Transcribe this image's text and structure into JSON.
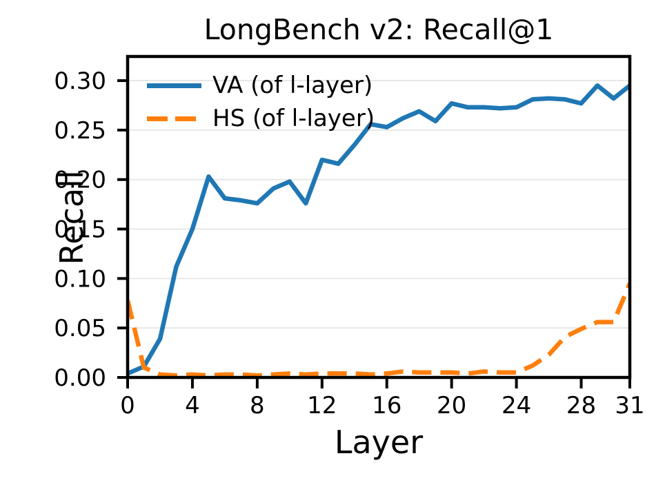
{
  "figure": {
    "background": "#ffffff"
  },
  "chart_data": {
    "type": "line",
    "title": "LongBench v2: Recall@1",
    "xlabel": "Layer",
    "ylabel": "Recall",
    "x": [
      0,
      1,
      2,
      3,
      4,
      5,
      6,
      7,
      8,
      9,
      10,
      11,
      12,
      13,
      14,
      15,
      16,
      17,
      18,
      19,
      20,
      21,
      22,
      23,
      24,
      25,
      26,
      27,
      28,
      29,
      30,
      31
    ],
    "series": [
      {
        "name": "VA (of l-layer)",
        "color": "#1f77b4",
        "line_style": "solid",
        "line_width": 6.5,
        "values": [
          0.004,
          0.011,
          0.039,
          0.112,
          0.15,
          0.203,
          0.181,
          0.179,
          0.176,
          0.191,
          0.198,
          0.176,
          0.22,
          0.216,
          0.235,
          0.256,
          0.253,
          0.262,
          0.269,
          0.259,
          0.277,
          0.273,
          0.273,
          0.272,
          0.273,
          0.281,
          0.282,
          0.281,
          0.277,
          0.295,
          0.282,
          0.295
        ]
      },
      {
        "name": "HS (of l-layer)",
        "color": "#ff7f0e",
        "line_style": "dashed",
        "line_width": 6.5,
        "values": [
          0.078,
          0.01,
          0.003,
          0.002,
          0.003,
          0.002,
          0.003,
          0.003,
          0.002,
          0.003,
          0.004,
          0.003,
          0.004,
          0.004,
          0.004,
          0.003,
          0.004,
          0.006,
          0.005,
          0.005,
          0.005,
          0.004,
          0.006,
          0.005,
          0.005,
          0.012,
          0.023,
          0.041,
          0.049,
          0.056,
          0.056,
          0.095
        ]
      }
    ],
    "xlim": [
      0,
      31
    ],
    "ylim": [
      0,
      0.3244
    ],
    "xticks": [
      0,
      4,
      8,
      12,
      16,
      20,
      24,
      28,
      31
    ],
    "yticks": {
      "values": [
        0,
        0.05,
        0.1,
        0.15,
        0.2,
        0.25,
        0.3
      ],
      "labels": [
        "0.00",
        "0.05",
        "0.10",
        "0.15",
        "0.20",
        "0.25",
        "0.30"
      ]
    },
    "grid": {
      "axis": "y",
      "color": "#e7e7e7",
      "on": true
    },
    "legend": {
      "position": "upper-left"
    },
    "axis_color": "#000000",
    "text_color": "#000000"
  }
}
